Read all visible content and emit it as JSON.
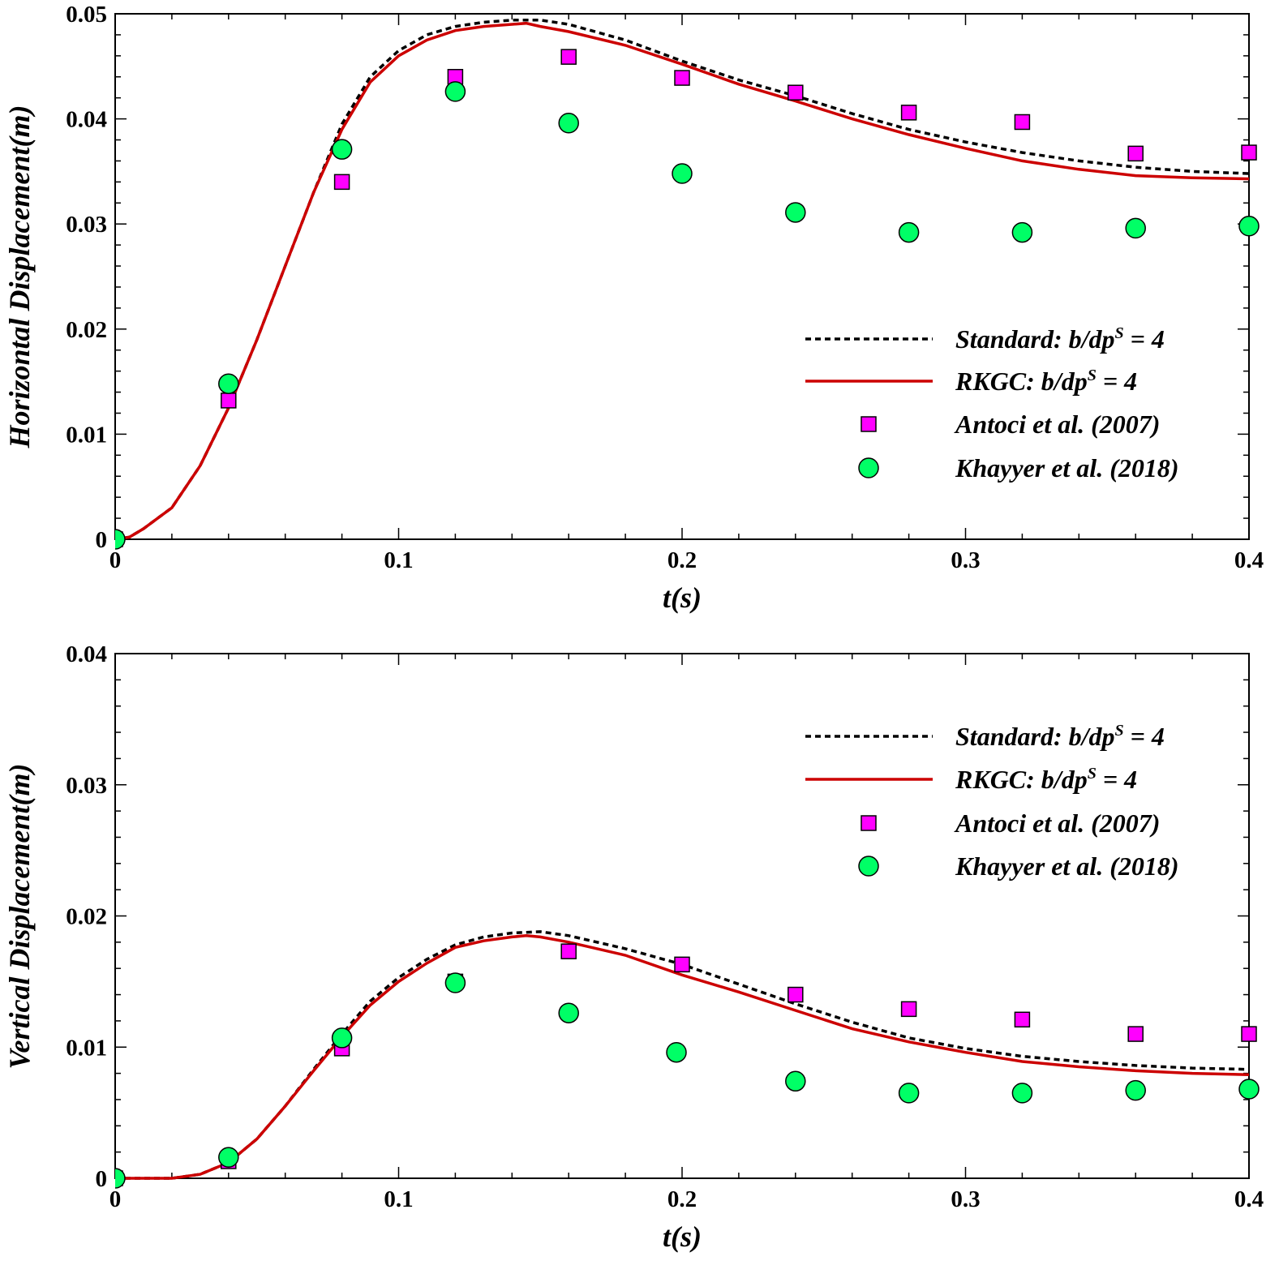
{
  "chart_data": [
    {
      "type": "line",
      "xlabel": "t(s)",
      "ylabel": "Horizontal Displacement(m)",
      "xlim": [
        0,
        0.4
      ],
      "ylim": [
        0,
        0.05
      ],
      "xticks": [
        0,
        0.1,
        0.2,
        0.3,
        0.4
      ],
      "xtick_labels": [
        "0",
        "0.1",
        "0.2",
        "0.3",
        "0.4"
      ],
      "yticks": [
        0,
        0.01,
        0.02,
        0.03,
        0.04,
        0.05
      ],
      "ytick_labels": [
        "0",
        "0.01",
        "0.02",
        "0.03",
        "0.04",
        "0.05"
      ],
      "grid": false,
      "legend_position": "center-right",
      "series": [
        {
          "name": "Standard: b/dp",
          "name_sup": "S",
          "name_tail": " = 4",
          "kind": "line",
          "style": "dashed",
          "color": "#000000",
          "x": [
            0,
            0.005,
            0.01,
            0.02,
            0.03,
            0.04,
            0.05,
            0.06,
            0.07,
            0.08,
            0.09,
            0.1,
            0.11,
            0.12,
            0.13,
            0.14,
            0.15,
            0.16,
            0.18,
            0.2,
            0.22,
            0.24,
            0.26,
            0.28,
            0.3,
            0.32,
            0.34,
            0.36,
            0.38,
            0.4
          ],
          "y": [
            0,
            0.0002,
            0.001,
            0.003,
            0.007,
            0.0125,
            0.019,
            0.026,
            0.033,
            0.0395,
            0.044,
            0.0465,
            0.048,
            0.0488,
            0.0492,
            0.0494,
            0.0494,
            0.049,
            0.0475,
            0.0455,
            0.0437,
            0.0422,
            0.0405,
            0.039,
            0.0378,
            0.0368,
            0.036,
            0.0354,
            0.035,
            0.0348
          ]
        },
        {
          "name": "RKGC: b/dp",
          "name_sup": "S",
          "name_tail": " = 4",
          "kind": "line",
          "style": "solid",
          "color": "#cc0000",
          "x": [
            0,
            0.005,
            0.01,
            0.02,
            0.03,
            0.04,
            0.05,
            0.06,
            0.07,
            0.08,
            0.09,
            0.1,
            0.11,
            0.12,
            0.13,
            0.14,
            0.145,
            0.15,
            0.16,
            0.18,
            0.2,
            0.22,
            0.24,
            0.26,
            0.28,
            0.3,
            0.32,
            0.34,
            0.36,
            0.38,
            0.4
          ],
          "y": [
            0,
            0.0002,
            0.001,
            0.003,
            0.007,
            0.0125,
            0.019,
            0.026,
            0.033,
            0.039,
            0.0435,
            0.046,
            0.0475,
            0.0484,
            0.0488,
            0.049,
            0.0491,
            0.0488,
            0.0483,
            0.047,
            0.0452,
            0.0433,
            0.0417,
            0.04,
            0.0385,
            0.0372,
            0.036,
            0.0352,
            0.0346,
            0.0344,
            0.0343
          ]
        },
        {
          "name": "Antoci et al. (2007)",
          "kind": "marker",
          "marker": "square",
          "color": "#ff00ff",
          "x": [
            0,
            0.04,
            0.08,
            0.12,
            0.16,
            0.2,
            0.24,
            0.28,
            0.32,
            0.36,
            0.4
          ],
          "y": [
            0,
            0.0132,
            0.034,
            0.044,
            0.0459,
            0.0439,
            0.0425,
            0.0406,
            0.0397,
            0.0367,
            0.0368
          ]
        },
        {
          "name": "Khayyer et al. (2018)",
          "kind": "marker",
          "marker": "circle",
          "color": "#00ff66",
          "x": [
            0,
            0.04,
            0.08,
            0.12,
            0.16,
            0.2,
            0.24,
            0.28,
            0.32,
            0.36,
            0.4
          ],
          "y": [
            0,
            0.0148,
            0.0371,
            0.0426,
            0.0396,
            0.0348,
            0.0311,
            0.0292,
            0.0292,
            0.0296,
            0.0298
          ]
        }
      ]
    },
    {
      "type": "line",
      "xlabel": "t(s)",
      "ylabel": "Vertical Displacement(m)",
      "xlim": [
        0,
        0.4
      ],
      "ylim": [
        0,
        0.04
      ],
      "xticks": [
        0,
        0.1,
        0.2,
        0.3,
        0.4
      ],
      "xtick_labels": [
        "0",
        "0.1",
        "0.2",
        "0.3",
        "0.4"
      ],
      "yticks": [
        0,
        0.01,
        0.02,
        0.03,
        0.04
      ],
      "ytick_labels": [
        "0",
        "0.01",
        "0.02",
        "0.03",
        "0.04"
      ],
      "grid": false,
      "legend_position": "top-right",
      "series": [
        {
          "name": "Standard: b/dp",
          "name_sup": "S",
          "name_tail": " = 4",
          "kind": "line",
          "style": "dashed",
          "color": "#000000",
          "x": [
            0,
            0.01,
            0.02,
            0.03,
            0.04,
            0.05,
            0.06,
            0.07,
            0.08,
            0.09,
            0.1,
            0.11,
            0.12,
            0.13,
            0.14,
            0.15,
            0.16,
            0.18,
            0.2,
            0.22,
            0.24,
            0.26,
            0.28,
            0.3,
            0.32,
            0.34,
            0.36,
            0.38,
            0.4
          ],
          "y": [
            0,
            0,
            0,
            0.0003,
            0.0012,
            0.003,
            0.0055,
            0.0083,
            0.011,
            0.0135,
            0.0153,
            0.0167,
            0.0178,
            0.0184,
            0.0187,
            0.0188,
            0.0185,
            0.0175,
            0.0163,
            0.0148,
            0.0133,
            0.0119,
            0.0107,
            0.0099,
            0.0093,
            0.0089,
            0.0086,
            0.0084,
            0.0083
          ]
        },
        {
          "name": "RKGC: b/dp",
          "name_sup": "S",
          "name_tail": " = 4",
          "kind": "line",
          "style": "solid",
          "color": "#cc0000",
          "x": [
            0,
            0.01,
            0.02,
            0.03,
            0.04,
            0.05,
            0.06,
            0.07,
            0.08,
            0.09,
            0.1,
            0.11,
            0.12,
            0.13,
            0.14,
            0.145,
            0.15,
            0.16,
            0.18,
            0.2,
            0.22,
            0.24,
            0.26,
            0.28,
            0.3,
            0.32,
            0.34,
            0.36,
            0.38,
            0.4
          ],
          "y": [
            0,
            0,
            0,
            0.0003,
            0.0012,
            0.003,
            0.0055,
            0.0082,
            0.0108,
            0.0132,
            0.015,
            0.0164,
            0.0176,
            0.0181,
            0.0184,
            0.0185,
            0.0184,
            0.018,
            0.017,
            0.0155,
            0.0142,
            0.0128,
            0.0114,
            0.0104,
            0.0096,
            0.0089,
            0.0085,
            0.0082,
            0.008,
            0.0079
          ]
        },
        {
          "name": "Antoci et al. (2007)",
          "kind": "marker",
          "marker": "square",
          "color": "#ff00ff",
          "x": [
            0,
            0.04,
            0.08,
            0.12,
            0.16,
            0.2,
            0.24,
            0.28,
            0.32,
            0.36,
            0.4
          ],
          "y": [
            0,
            0.0013,
            0.0099,
            0.015,
            0.0173,
            0.0163,
            0.014,
            0.0129,
            0.0121,
            0.011,
            0.011
          ]
        },
        {
          "name": "Khayyer et al. (2018)",
          "kind": "marker",
          "marker": "circle",
          "color": "#00ff66",
          "x": [
            0,
            0.04,
            0.08,
            0.12,
            0.16,
            0.198,
            0.24,
            0.28,
            0.32,
            0.36,
            0.4
          ],
          "y": [
            0,
            0.0016,
            0.0107,
            0.0149,
            0.0126,
            0.0096,
            0.0074,
            0.0065,
            0.0065,
            0.0067,
            0.0068
          ]
        }
      ]
    }
  ]
}
